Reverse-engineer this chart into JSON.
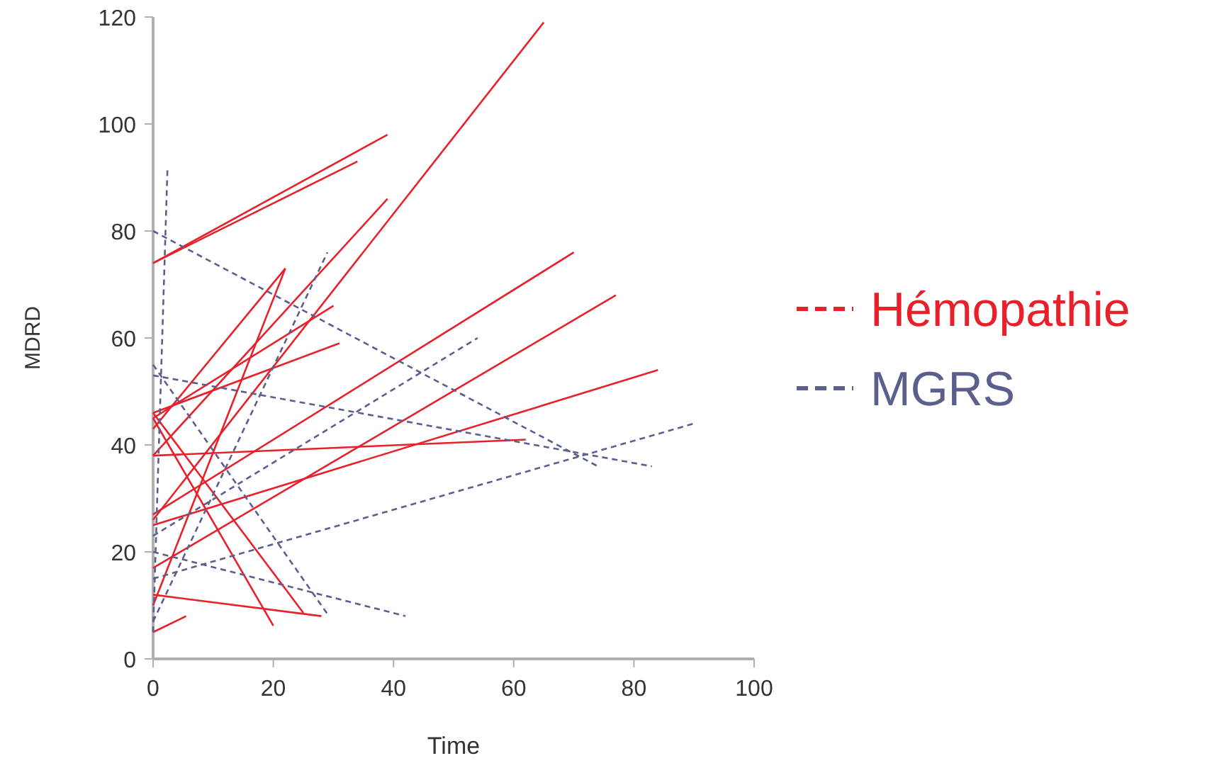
{
  "chart_data": {
    "type": "line",
    "xlabel": "Time",
    "ylabel": "MDRD",
    "xlim": [
      0,
      100
    ],
    "ylim": [
      0,
      120
    ],
    "xticks": [
      0,
      20,
      40,
      60,
      80,
      100
    ],
    "yticks": [
      0,
      20,
      40,
      60,
      80,
      100,
      120
    ],
    "grid": false,
    "legend": "right",
    "series": [
      {
        "name": "Hémopathie",
        "color": "#e8202a",
        "line_style": "solid",
        "x": [
          0,
          39
        ],
        "values": [
          74,
          98
        ]
      },
      {
        "color": "#e8202a",
        "line_style": "solid",
        "x": [
          0,
          34
        ],
        "values": [
          74,
          93
        ]
      },
      {
        "color": "#e8202a",
        "line_style": "solid",
        "x": [
          0,
          65
        ],
        "values": [
          26,
          119
        ]
      },
      {
        "color": "#e8202a",
        "line_style": "solid",
        "x": [
          0,
          39
        ],
        "values": [
          38,
          86
        ]
      },
      {
        "color": "#e8202a",
        "line_style": "solid",
        "x": [
          0,
          22
        ],
        "values": [
          43,
          73
        ]
      },
      {
        "color": "#e8202a",
        "line_style": "solid",
        "x": [
          0,
          22
        ],
        "values": [
          10,
          73
        ]
      },
      {
        "color": "#e8202a",
        "line_style": "solid",
        "x": [
          0,
          30
        ],
        "values": [
          45,
          66
        ]
      },
      {
        "color": "#e8202a",
        "line_style": "solid",
        "x": [
          0,
          31
        ],
        "values": [
          46,
          59
        ]
      },
      {
        "color": "#e8202a",
        "line_style": "solid",
        "x": [
          0,
          62
        ],
        "values": [
          38,
          41
        ]
      },
      {
        "color": "#e8202a",
        "line_style": "solid",
        "x": [
          0,
          70
        ],
        "values": [
          27,
          76
        ]
      },
      {
        "color": "#e8202a",
        "line_style": "solid",
        "x": [
          0,
          77
        ],
        "values": [
          17,
          68
        ]
      },
      {
        "color": "#e8202a",
        "line_style": "solid",
        "x": [
          0,
          84
        ],
        "values": [
          25,
          54
        ]
      },
      {
        "color": "#e8202a",
        "line_style": "solid",
        "x": [
          0,
          25
        ],
        "values": [
          46,
          8.6
        ]
      },
      {
        "color": "#e8202a",
        "line_style": "solid",
        "x": [
          0,
          20
        ],
        "values": [
          45,
          6.2
        ]
      },
      {
        "color": "#e8202a",
        "line_style": "solid",
        "x": [
          0,
          28
        ],
        "values": [
          12,
          8
        ]
      },
      {
        "color": "#e8202a",
        "line_style": "solid",
        "x": [
          0,
          5.5
        ],
        "values": [
          5,
          8
        ]
      },
      {
        "name": "MGRS",
        "color": "#5a5f8c",
        "line_style": "dashed",
        "x": [
          0,
          2.4
        ],
        "values": [
          5,
          92
        ]
      },
      {
        "color": "#5a5f8c",
        "line_style": "dashed",
        "x": [
          0,
          74
        ],
        "values": [
          80,
          36
        ]
      },
      {
        "color": "#5a5f8c",
        "line_style": "dashed",
        "x": [
          0,
          83
        ],
        "values": [
          53,
          36
        ]
      },
      {
        "color": "#5a5f8c",
        "line_style": "dashed",
        "x": [
          0,
          29
        ],
        "values": [
          55,
          8.4
        ]
      },
      {
        "color": "#5a5f8c",
        "line_style": "dashed",
        "x": [
          0,
          42
        ],
        "values": [
          20,
          8
        ]
      },
      {
        "color": "#5a5f8c",
        "line_style": "dashed",
        "x": [
          0,
          29
        ],
        "values": [
          7,
          76
        ]
      },
      {
        "color": "#5a5f8c",
        "line_style": "dashed",
        "x": [
          0,
          54
        ],
        "values": [
          23,
          60
        ]
      },
      {
        "color": "#5a5f8c",
        "line_style": "dashed",
        "x": [
          0,
          90
        ],
        "values": [
          15,
          44
        ]
      }
    ]
  }
}
